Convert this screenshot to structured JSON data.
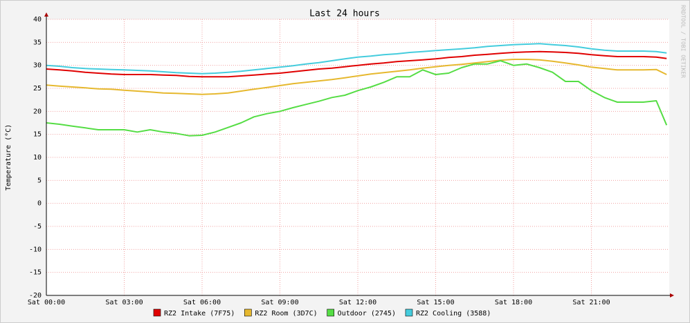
{
  "chart_data": {
    "type": "line",
    "title": "Last 24 hours",
    "y_label": "Temperature (°C)",
    "watermark": "RRDTOOL / TOBI OETIKER",
    "x": [
      0,
      0.5,
      1,
      1.5,
      2,
      2.5,
      3,
      3.5,
      4,
      4.5,
      5,
      5.5,
      6,
      6.5,
      7,
      7.5,
      8,
      8.5,
      9,
      9.5,
      10,
      10.5,
      11,
      11.5,
      12,
      12.5,
      13,
      13.5,
      14,
      14.5,
      15,
      15.5,
      16,
      16.5,
      17,
      17.5,
      18,
      18.5,
      19,
      19.5,
      20,
      20.5,
      21,
      21.5,
      22,
      22.5,
      23,
      23.5,
      23.9
    ],
    "xlim": [
      0,
      24
    ],
    "xticks": [
      {
        "value": 0,
        "label": "Sat 00:00"
      },
      {
        "value": 3,
        "label": "Sat 03:00"
      },
      {
        "value": 6,
        "label": "Sat 06:00"
      },
      {
        "value": 9,
        "label": "Sat 09:00"
      },
      {
        "value": 12,
        "label": "Sat 12:00"
      },
      {
        "value": 15,
        "label": "Sat 15:00"
      },
      {
        "value": 18,
        "label": "Sat 18:00"
      },
      {
        "value": 21,
        "label": "Sat 21:00"
      }
    ],
    "ylim": [
      -20,
      40
    ],
    "yticks": [
      -20,
      -15,
      -10,
      -5,
      0,
      5,
      10,
      15,
      20,
      25,
      30,
      35,
      40
    ],
    "grid": true,
    "series": [
      {
        "name": "RZ2 Intake (7F75)",
        "color": "#e00000",
        "values": [
          29.2,
          29.0,
          28.8,
          28.5,
          28.3,
          28.1,
          28.0,
          28.0,
          28.0,
          27.9,
          27.8,
          27.6,
          27.5,
          27.5,
          27.5,
          27.7,
          27.9,
          28.1,
          28.3,
          28.6,
          28.9,
          29.2,
          29.4,
          29.7,
          30.0,
          30.3,
          30.5,
          30.8,
          31.0,
          31.2,
          31.4,
          31.7,
          31.9,
          32.2,
          32.4,
          32.6,
          32.8,
          32.9,
          33.0,
          32.9,
          32.8,
          32.6,
          32.3,
          32.1,
          31.9,
          31.9,
          31.9,
          31.8,
          31.5
        ]
      },
      {
        "name": "RZ2 Room (3D7C)",
        "color": "#e6b82e",
        "values": [
          25.7,
          25.5,
          25.3,
          25.1,
          24.9,
          24.8,
          24.6,
          24.4,
          24.2,
          24.0,
          23.9,
          23.8,
          23.7,
          23.8,
          24.0,
          24.4,
          24.8,
          25.2,
          25.6,
          26.0,
          26.3,
          26.6,
          26.9,
          27.3,
          27.7,
          28.1,
          28.4,
          28.7,
          29.0,
          29.4,
          29.7,
          30.0,
          30.2,
          30.5,
          30.8,
          31.1,
          31.3,
          31.3,
          31.2,
          30.9,
          30.5,
          30.1,
          29.6,
          29.3,
          29.0,
          29.0,
          29.0,
          29.1,
          28.0
        ]
      },
      {
        "name": "Outdoor (2745)",
        "color": "#55dd44",
        "values": [
          17.5,
          17.2,
          16.8,
          16.4,
          16.0,
          16.0,
          16.0,
          15.5,
          16.0,
          15.5,
          15.2,
          14.7,
          14.8,
          15.5,
          16.5,
          17.5,
          18.8,
          19.5,
          20.0,
          20.8,
          21.5,
          22.2,
          23.0,
          23.5,
          24.5,
          25.3,
          26.3,
          27.5,
          27.5,
          29.0,
          28.0,
          28.3,
          29.5,
          30.3,
          30.3,
          31.0,
          30.0,
          30.3,
          29.5,
          28.5,
          26.5,
          26.5,
          24.5,
          23.0,
          22.0,
          22.0,
          22.0,
          22.3,
          17.0
        ]
      },
      {
        "name": "RZ2 Cooling (3588)",
        "color": "#44ccdd",
        "values": [
          30.0,
          29.8,
          29.5,
          29.3,
          29.2,
          29.1,
          29.0,
          28.9,
          28.8,
          28.6,
          28.4,
          28.3,
          28.2,
          28.3,
          28.5,
          28.7,
          29.0,
          29.3,
          29.6,
          29.9,
          30.3,
          30.6,
          31.0,
          31.4,
          31.8,
          32.0,
          32.3,
          32.5,
          32.8,
          33.0,
          33.2,
          33.4,
          33.6,
          33.8,
          34.1,
          34.3,
          34.5,
          34.6,
          34.7,
          34.5,
          34.3,
          34.0,
          33.6,
          33.3,
          33.1,
          33.1,
          33.1,
          33.0,
          32.7
        ]
      }
    ]
  }
}
